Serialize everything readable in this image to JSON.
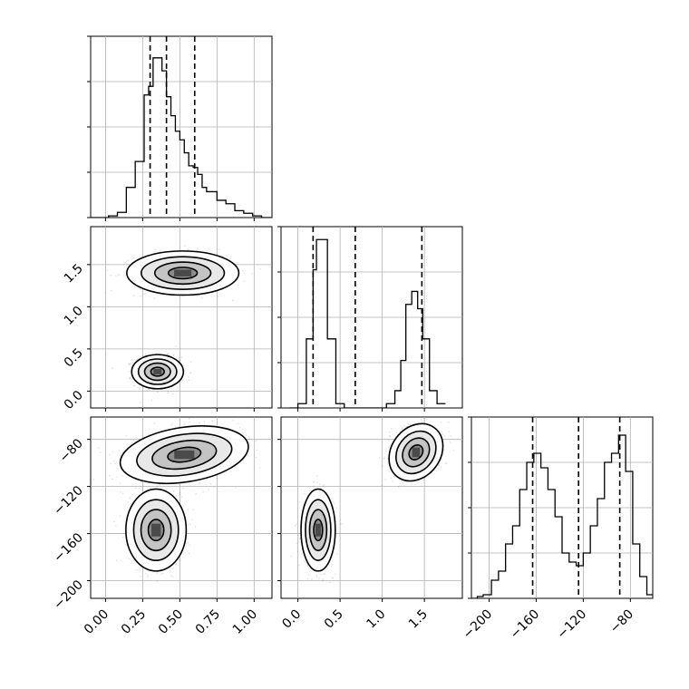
{
  "chart_data": {
    "type": "corner",
    "title": "",
    "style": {
      "line_color": "#000000",
      "grid_color": "#b0b0b0",
      "point_color": "#000000",
      "background": "#ffffff"
    },
    "parameters": [
      {
        "index": 0,
        "label": "",
        "range": [
          -0.1,
          1.12
        ],
        "ticks": [
          0.0,
          0.25,
          0.5,
          0.75,
          1.0
        ],
        "tick_labels": [
          "0.00",
          "0.25",
          "0.50",
          "0.75",
          "1.00"
        ],
        "quantiles": [
          0.3,
          0.41,
          0.6
        ],
        "histogram": {
          "bin_edges": [
            -0.1,
            -0.04,
            0.02,
            0.08,
            0.14,
            0.2,
            0.26,
            0.29,
            0.32,
            0.35,
            0.38,
            0.41,
            0.44,
            0.47,
            0.5,
            0.53,
            0.56,
            0.59,
            0.62,
            0.65,
            0.68,
            0.71,
            0.75,
            0.81,
            0.87,
            0.93,
            0.99,
            1.05,
            1.12
          ],
          "counts": [
            0,
            0,
            2,
            6,
            35,
            65,
            142,
            152,
            185,
            185,
            170,
            140,
            118,
            100,
            90,
            75,
            60,
            58,
            50,
            35,
            30,
            30,
            20,
            16,
            8,
            5,
            2,
            0
          ],
          "ylim": [
            0,
            210
          ]
        }
      },
      {
        "index": 1,
        "label": "",
        "range": [
          -0.2,
          1.95
        ],
        "ticks": [
          0.0,
          0.5,
          1.0,
          1.5
        ],
        "tick_labels": [
          "0.0",
          "0.5",
          "1.0",
          "1.5"
        ],
        "quantiles": [
          0.18,
          0.68,
          1.47
        ],
        "histogram": {
          "bin_edges": [
            -0.1,
            0.0,
            0.1,
            0.18,
            0.22,
            0.28,
            0.35,
            0.45,
            0.55,
            0.65,
            0.75,
            0.85,
            0.95,
            1.05,
            1.15,
            1.22,
            1.28,
            1.35,
            1.42,
            1.48,
            1.56,
            1.65,
            1.75
          ],
          "counts": [
            0,
            5,
            80,
            160,
            195,
            195,
            80,
            5,
            0,
            0,
            0,
            0,
            0,
            5,
            20,
            55,
            120,
            135,
            115,
            80,
            20,
            5
          ],
          "ylim": [
            0,
            210
          ]
        }
      },
      {
        "index": 2,
        "label": "",
        "range": [
          -215,
          -61
        ],
        "ticks": [
          -200,
          -160,
          -120,
          -80
        ],
        "tick_labels": [
          "−200",
          "−160",
          "−120",
          "−80"
        ],
        "quantiles": [
          -163,
          -124,
          -89
        ],
        "histogram": {
          "bin_edges": [
            -215,
            -210,
            -205,
            -198,
            -192,
            -186,
            -180,
            -174,
            -168,
            -162,
            -156,
            -150,
            -144,
            -138,
            -132,
            -126,
            -120,
            -114,
            -108,
            -102,
            -96,
            -90,
            -84,
            -78,
            -72,
            -66,
            -61
          ],
          "counts": [
            0,
            1,
            2,
            10,
            15,
            30,
            40,
            60,
            75,
            80,
            72,
            60,
            45,
            25,
            20,
            18,
            25,
            40,
            55,
            75,
            80,
            90,
            70,
            30,
            12,
            2
          ],
          "ylim": [
            0,
            100
          ]
        }
      }
    ],
    "pairs": [
      {
        "x_param": 0,
        "y_param": 1,
        "modes": [
          {
            "center": [
              0.35,
              0.23
            ],
            "spread": [
              0.06,
              0.07
            ],
            "rotation": 0,
            "weight": 0.5
          },
          {
            "center": [
              0.52,
              1.4
            ],
            "spread": [
              0.13,
              0.09
            ],
            "rotation": 0,
            "weight": 0.5
          }
        ]
      },
      {
        "x_param": 0,
        "y_param": 2,
        "modes": [
          {
            "center": [
              0.34,
              -157
            ],
            "spread": [
              0.07,
              12
            ],
            "rotation": 0,
            "weight": 0.5
          },
          {
            "center": [
              0.53,
              -93
            ],
            "spread": [
              0.15,
              8
            ],
            "rotation": 0.15,
            "weight": 0.5
          }
        ]
      },
      {
        "x_param": 1,
        "y_param": 2,
        "modes": [
          {
            "center": [
              0.24,
              -157
            ],
            "spread": [
              0.07,
              12
            ],
            "rotation": 0,
            "weight": 0.5
          },
          {
            "center": [
              1.4,
              -91
            ],
            "spread": [
              0.1,
              9
            ],
            "rotation": -0.65,
            "weight": 0.5
          }
        ]
      }
    ],
    "contour_levels": [
      0.12,
      0.39,
      0.68,
      0.86
    ],
    "show_grid": true
  }
}
